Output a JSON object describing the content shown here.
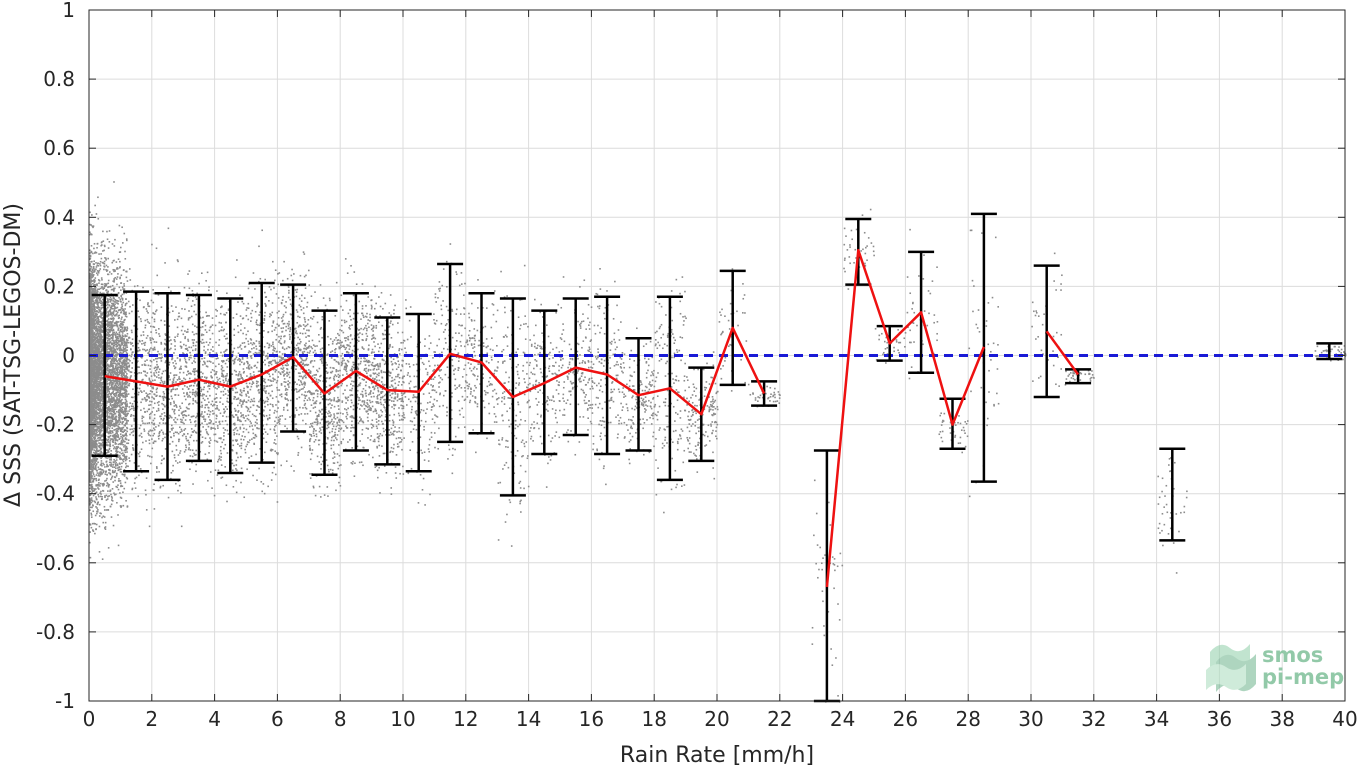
{
  "chart_data": {
    "type": "scatter",
    "title": "",
    "xlabel": "Rain Rate [mm/h]",
    "ylabel": "Δ SSS (SAT-TSG-LEGOS-DM)",
    "xlim": [
      0,
      40
    ],
    "ylim": [
      -1,
      1
    ],
    "grid": true,
    "x_ticks": [
      0,
      2,
      4,
      6,
      8,
      10,
      12,
      14,
      16,
      18,
      20,
      22,
      24,
      26,
      28,
      30,
      32,
      34,
      36,
      38,
      40
    ],
    "y_ticks": [
      -1,
      -0.8,
      -0.6,
      -0.4,
      -0.2,
      0,
      0.2,
      0.4,
      0.6,
      0.8,
      1
    ],
    "y_tick_labels": [
      "-1",
      "-0.8",
      "-0.6",
      "-0.4",
      "-0.2",
      "0",
      "0.2",
      "0.4",
      "0.6",
      "0.8",
      "1"
    ],
    "reference_line": {
      "y": 0,
      "style": "dashed",
      "color": "#1a1ad6"
    },
    "series": [
      {
        "role": "bin_mean",
        "type": "line",
        "color": "#ee1111",
        "segments": [
          [
            [
              0.5,
              -0.06
            ],
            [
              1.5,
              -0.075
            ],
            [
              2.5,
              -0.09
            ],
            [
              3.5,
              -0.07
            ],
            [
              4.5,
              -0.09
            ],
            [
              5.5,
              -0.055
            ],
            [
              6.5,
              -0.005
            ],
            [
              7.5,
              -0.11
            ],
            [
              8.5,
              -0.045
            ],
            [
              9.5,
              -0.1
            ],
            [
              10.5,
              -0.105
            ],
            [
              11.5,
              0.005
            ],
            [
              12.5,
              -0.02
            ],
            [
              13.5,
              -0.12
            ],
            [
              14.5,
              -0.08
            ],
            [
              15.5,
              -0.035
            ],
            [
              16.5,
              -0.055
            ],
            [
              17.5,
              -0.115
            ],
            [
              18.5,
              -0.095
            ],
            [
              19.5,
              -0.17
            ],
            [
              20.5,
              0.08
            ],
            [
              21.5,
              -0.11
            ]
          ],
          [
            [
              23.5,
              -0.67
            ],
            [
              24.5,
              0.305
            ],
            [
              25.5,
              0.035
            ],
            [
              26.5,
              0.125
            ],
            [
              27.5,
              -0.2
            ],
            [
              28.5,
              0.025
            ]
          ],
          [
            [
              30.5,
              0.07
            ],
            [
              31.5,
              -0.055
            ]
          ]
        ]
      },
      {
        "role": "bin_spread",
        "type": "errorbar",
        "color": "#000000",
        "bars": [
          {
            "x": 0.5,
            "low": -0.29,
            "high": 0.175
          },
          {
            "x": 1.5,
            "low": -0.335,
            "high": 0.185
          },
          {
            "x": 2.5,
            "low": -0.36,
            "high": 0.18
          },
          {
            "x": 3.5,
            "low": -0.305,
            "high": 0.175
          },
          {
            "x": 4.5,
            "low": -0.34,
            "high": 0.165
          },
          {
            "x": 5.5,
            "low": -0.31,
            "high": 0.21
          },
          {
            "x": 6.5,
            "low": -0.22,
            "high": 0.205
          },
          {
            "x": 7.5,
            "low": -0.345,
            "high": 0.13
          },
          {
            "x": 8.5,
            "low": -0.275,
            "high": 0.18
          },
          {
            "x": 9.5,
            "low": -0.315,
            "high": 0.11
          },
          {
            "x": 10.5,
            "low": -0.335,
            "high": 0.12
          },
          {
            "x": 11.5,
            "low": -0.25,
            "high": 0.265
          },
          {
            "x": 12.5,
            "low": -0.225,
            "high": 0.18
          },
          {
            "x": 13.5,
            "low": -0.405,
            "high": 0.165
          },
          {
            "x": 14.5,
            "low": -0.285,
            "high": 0.13
          },
          {
            "x": 15.5,
            "low": -0.23,
            "high": 0.165
          },
          {
            "x": 16.5,
            "low": -0.285,
            "high": 0.17
          },
          {
            "x": 17.5,
            "low": -0.275,
            "high": 0.05
          },
          {
            "x": 18.5,
            "low": -0.36,
            "high": 0.17
          },
          {
            "x": 19.5,
            "low": -0.305,
            "high": -0.035
          },
          {
            "x": 20.5,
            "low": -0.085,
            "high": 0.245
          },
          {
            "x": 21.5,
            "low": -0.145,
            "high": -0.075
          },
          {
            "x": 23.5,
            "low": -1.0,
            "high": -0.275
          },
          {
            "x": 24.5,
            "low": 0.205,
            "high": 0.395
          },
          {
            "x": 25.5,
            "low": -0.015,
            "high": 0.085
          },
          {
            "x": 26.5,
            "low": -0.05,
            "high": 0.3
          },
          {
            "x": 27.5,
            "low": -0.27,
            "high": -0.125
          },
          {
            "x": 28.5,
            "low": -0.365,
            "high": 0.41
          },
          {
            "x": 30.5,
            "low": -0.12,
            "high": 0.26
          },
          {
            "x": 31.5,
            "low": -0.08,
            "high": -0.04
          },
          {
            "x": 34.5,
            "low": -0.535,
            "high": -0.27
          },
          {
            "x": 39.5,
            "low": -0.01,
            "high": 0.035
          }
        ]
      },
      {
        "role": "samples",
        "type": "scatter",
        "color": "#8c8c8c"
      }
    ]
  },
  "logo": {
    "line1": "smos",
    "line2": "pi-mep",
    "color": "#7fc09a"
  }
}
